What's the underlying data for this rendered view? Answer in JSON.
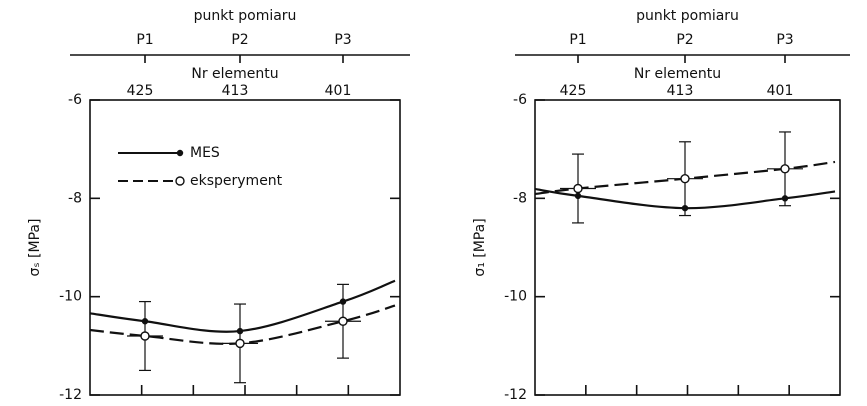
{
  "chart_data": [
    {
      "type": "line",
      "top_axis_label": "punkt pomiaru",
      "categories": [
        "P1",
        "P2",
        "P3"
      ],
      "element_axis_label": "Nr elementu",
      "elements": [
        425,
        413,
        401
      ],
      "ylabel": "σₛ [MPa]",
      "ylim": [
        -12,
        -6
      ],
      "yticks": [
        -6,
        -8,
        -10,
        -12
      ],
      "legend": true,
      "series": [
        {
          "name": "MES",
          "color": "#111111",
          "dashed": false,
          "marker": "dot",
          "values": [
            -10.5,
            -10.7,
            -10.1
          ]
        },
        {
          "name": "eksperyment",
          "color": "#111111",
          "dashed": true,
          "marker": "circle",
          "values": [
            -10.8,
            -10.95,
            -10.5
          ],
          "errors": [
            0.7,
            0.8,
            0.75
          ]
        }
      ]
    },
    {
      "type": "line",
      "top_axis_label": "punkt pomiaru",
      "categories": [
        "P1",
        "P2",
        "P3"
      ],
      "element_axis_label": "Nr elementu",
      "elements": [
        425,
        413,
        401
      ],
      "ylabel": "σ₁ [MPa]",
      "ylim": [
        -12,
        -6
      ],
      "yticks": [
        -6,
        -8,
        -10,
        -12
      ],
      "legend": false,
      "series": [
        {
          "name": "MES",
          "color": "#111111",
          "dashed": false,
          "marker": "dot",
          "values": [
            -7.95,
            -8.2,
            -8.0
          ]
        },
        {
          "name": "eksperyment",
          "color": "#111111",
          "dashed": true,
          "marker": "circle",
          "values": [
            -7.8,
            -7.6,
            -7.4
          ],
          "errors": [
            0.7,
            0.75,
            0.75
          ]
        }
      ]
    }
  ]
}
